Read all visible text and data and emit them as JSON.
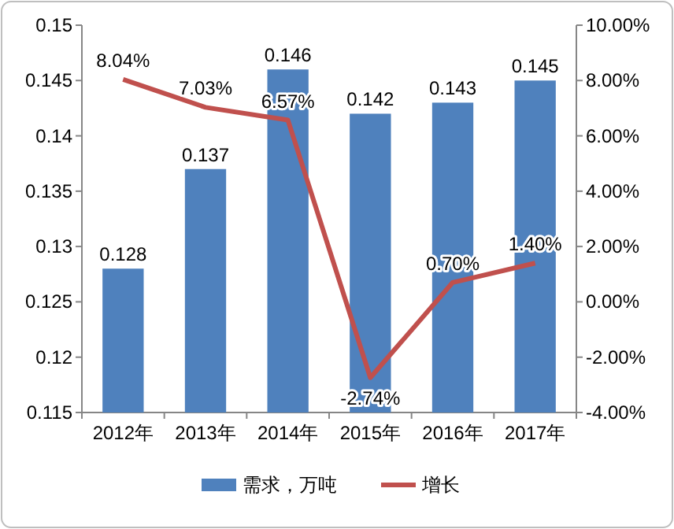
{
  "chart_data": {
    "type": "bar",
    "categories": [
      "2012年",
      "2013年",
      "2014年",
      "2015年",
      "2016年",
      "2017年"
    ],
    "series": [
      {
        "name": "需求，万吨",
        "color": "#4f81bd",
        "values": [
          0.128,
          0.137,
          0.146,
          0.142,
          0.143,
          0.145
        ],
        "value_labels": [
          "0.128",
          "0.137",
          "0.146",
          "0.142",
          "0.143",
          "0.145"
        ]
      },
      {
        "name": "增长",
        "type": "line",
        "axis": "y2",
        "color": "#c0504d",
        "values": [
          8.04,
          7.03,
          6.57,
          -2.74,
          0.7,
          1.4
        ],
        "value_labels": [
          "8.04%",
          "7.03%",
          "6.57%",
          "-2.74%",
          "0.70%",
          "1.40%"
        ]
      }
    ],
    "ylim": [
      0.115,
      0.15
    ],
    "yticks": [
      0.115,
      0.12,
      0.125,
      0.13,
      0.135,
      0.14,
      0.145,
      0.15
    ],
    "y2lim": [
      -4,
      10
    ],
    "y2ticks": [
      {
        "value": -4,
        "label": "-4.00%"
      },
      {
        "value": -2,
        "label": "-2.00%"
      },
      {
        "value": 0,
        "label": "0.00%"
      },
      {
        "value": 2,
        "label": "2.00%"
      },
      {
        "value": 4,
        "label": "4.00%"
      },
      {
        "value": 6,
        "label": "6.00%"
      },
      {
        "value": 8,
        "label": "8.00%"
      },
      {
        "value": 10,
        "label": "10.00%"
      }
    ],
    "legend": "bottom",
    "marker": "none",
    "line_style": "solid",
    "grid": false
  }
}
